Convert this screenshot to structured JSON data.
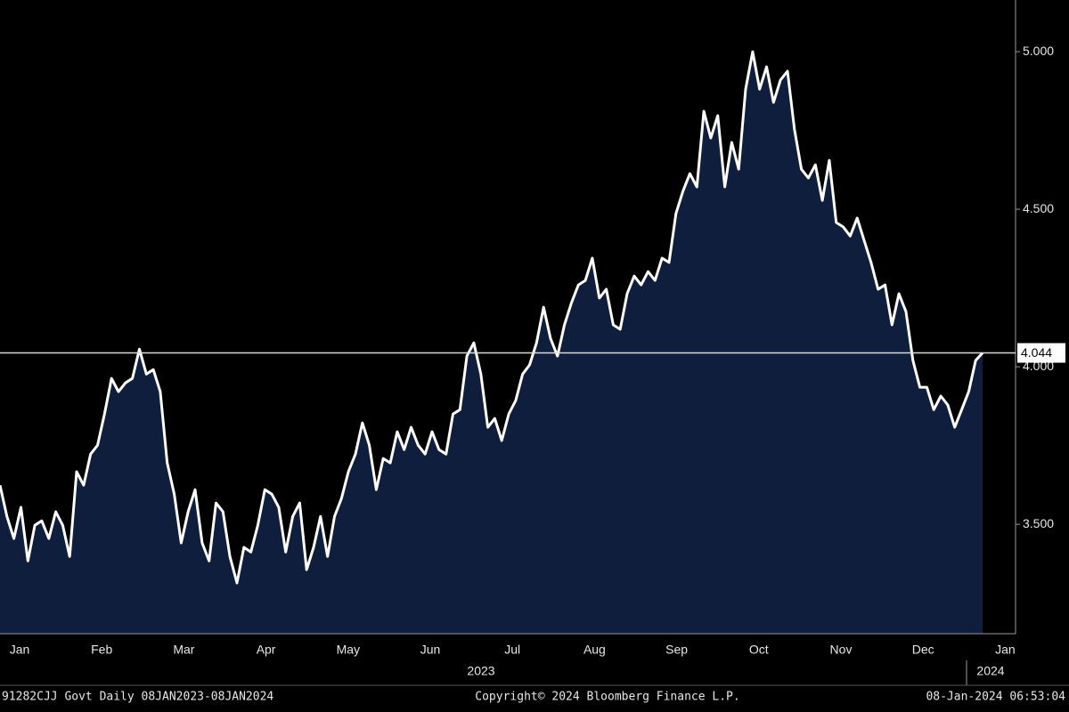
{
  "chart_data": {
    "type": "area",
    "color": "#0e1e3c",
    "line_color": "#ffffff",
    "values": [
      3.624,
      3.525,
      3.455,
      3.554,
      3.384,
      3.497,
      3.511,
      3.455,
      3.54,
      3.497,
      3.398,
      3.667,
      3.624,
      3.723,
      3.751,
      3.85,
      3.963,
      3.921,
      3.949,
      3.963,
      4.056,
      3.977,
      3.991,
      3.921,
      3.695,
      3.596,
      3.441,
      3.54,
      3.61,
      3.441,
      3.384,
      3.568,
      3.54,
      3.398,
      3.314,
      3.427,
      3.412,
      3.497,
      3.61,
      3.596,
      3.554,
      3.412,
      3.525,
      3.568,
      3.356,
      3.427,
      3.525,
      3.398,
      3.525,
      3.582,
      3.667,
      3.723,
      3.822,
      3.751,
      3.61,
      3.709,
      3.695,
      3.794,
      3.737,
      3.808,
      3.751,
      3.723,
      3.794,
      3.737,
      3.723,
      3.85,
      3.864,
      4.034,
      4.076,
      3.977,
      3.808,
      3.836,
      3.766,
      3.85,
      3.893,
      3.977,
      4.006,
      4.076,
      4.189,
      4.09,
      4.034,
      4.133,
      4.203,
      4.26,
      4.274,
      4.345,
      4.218,
      4.246,
      4.133,
      4.119,
      4.232,
      4.288,
      4.26,
      4.302,
      4.274,
      4.345,
      4.331,
      4.486,
      4.557,
      4.613,
      4.571,
      4.811,
      4.726,
      4.797,
      4.571,
      4.712,
      4.627,
      4.881,
      5.0,
      4.881,
      4.952,
      4.839,
      4.91,
      4.938,
      4.754,
      4.627,
      4.599,
      4.641,
      4.528,
      4.655,
      4.458,
      4.444,
      4.415,
      4.472,
      4.401,
      4.331,
      4.246,
      4.26,
      4.133,
      4.232,
      4.175,
      4.02,
      3.935,
      3.935,
      3.864,
      3.907,
      3.879,
      3.808,
      3.864,
      3.921,
      4.02,
      4.044
    ],
    "ylim": [
      3.153,
      5.164
    ],
    "yticks": [
      {
        "value": 3.5,
        "label": "3.500"
      },
      {
        "value": 4,
        "label": "4.000"
      },
      {
        "value": 4.5,
        "label": "4.500"
      },
      {
        "value": 5,
        "label": "5.000"
      }
    ],
    "month_labels": [
      "Jan",
      "Feb",
      "Mar",
      "Apr",
      "May",
      "Jun",
      "Jul",
      "Aug",
      "Sep",
      "Oct",
      "Nov",
      "Dec",
      "Jan"
    ],
    "year_labels": [
      "2023",
      "2024"
    ],
    "footer": {
      "security": "91282CJJ Govt  Daily 08JAN2023-08JAN2024",
      "copyright": "Copyright© 2024 Bloomberg Finance L.P.",
      "timestamp": "08-Jan-2024 06:53:04"
    }
  }
}
